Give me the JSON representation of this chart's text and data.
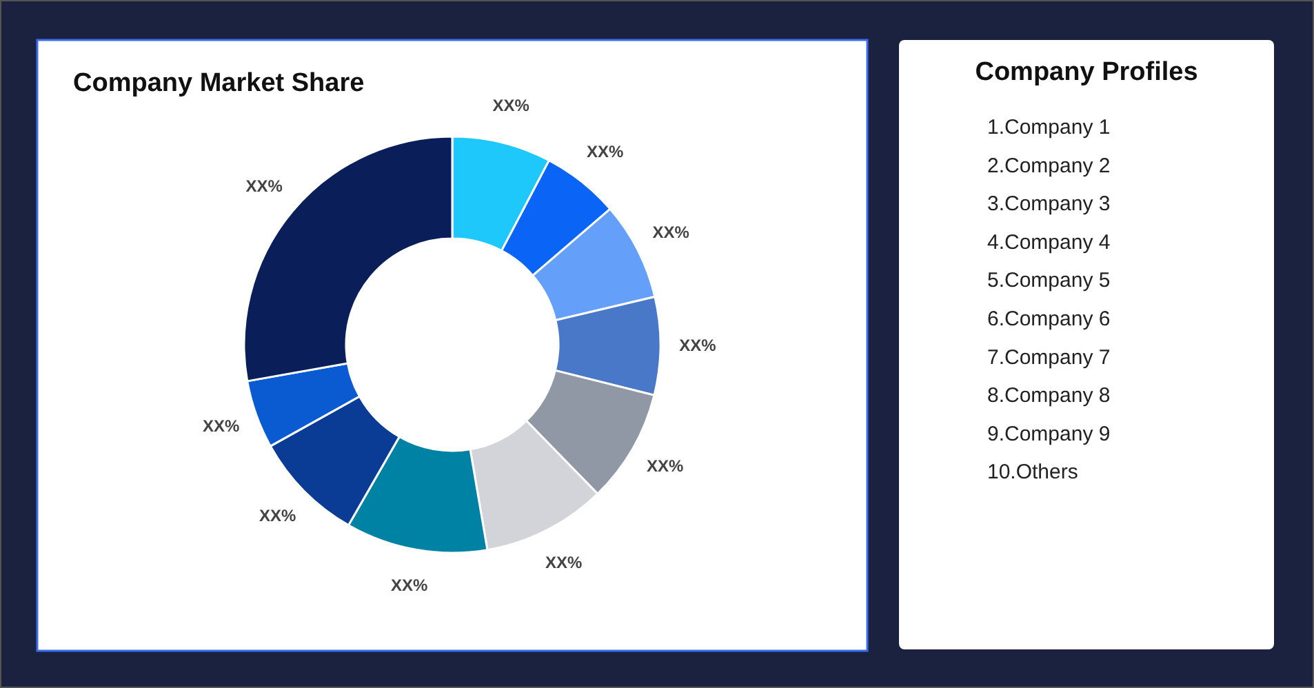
{
  "chart_data": [
    {
      "type": "donut",
      "title": "Company Market Share",
      "categories": [
        null,
        null,
        null,
        null,
        null,
        null,
        null,
        null,
        null,
        null
      ],
      "values": [
        7.7,
        6.0,
        7.6,
        7.6,
        8.8,
        9.6,
        11.0,
        8.6,
        5.3,
        27.8
      ],
      "colors": [
        "#1ec8fa",
        "#0a64f5",
        "#64a0fa",
        "#4a78c8",
        "#9198a5",
        "#d2d4da",
        "#0082a5",
        "#0a3c96",
        "#0a5ad2",
        "#0a1e5a"
      ],
      "value_labels": [
        "XX%",
        "XX%",
        "XX%",
        "XX%",
        "XX%",
        "XX%",
        "XX%",
        "XX%",
        "XX%",
        "XX%"
      ]
    },
    {
      "type": "other",
      "title": "Company Profiles",
      "annotations": [
        "1.Company 1",
        "2.Company 2",
        "3.Company 3",
        "4.Company 4",
        "5.Company 5",
        "6.Company 6",
        "7.Company 7",
        "8.Company 8",
        "9.Company 9",
        "10.Others"
      ]
    }
  ]
}
